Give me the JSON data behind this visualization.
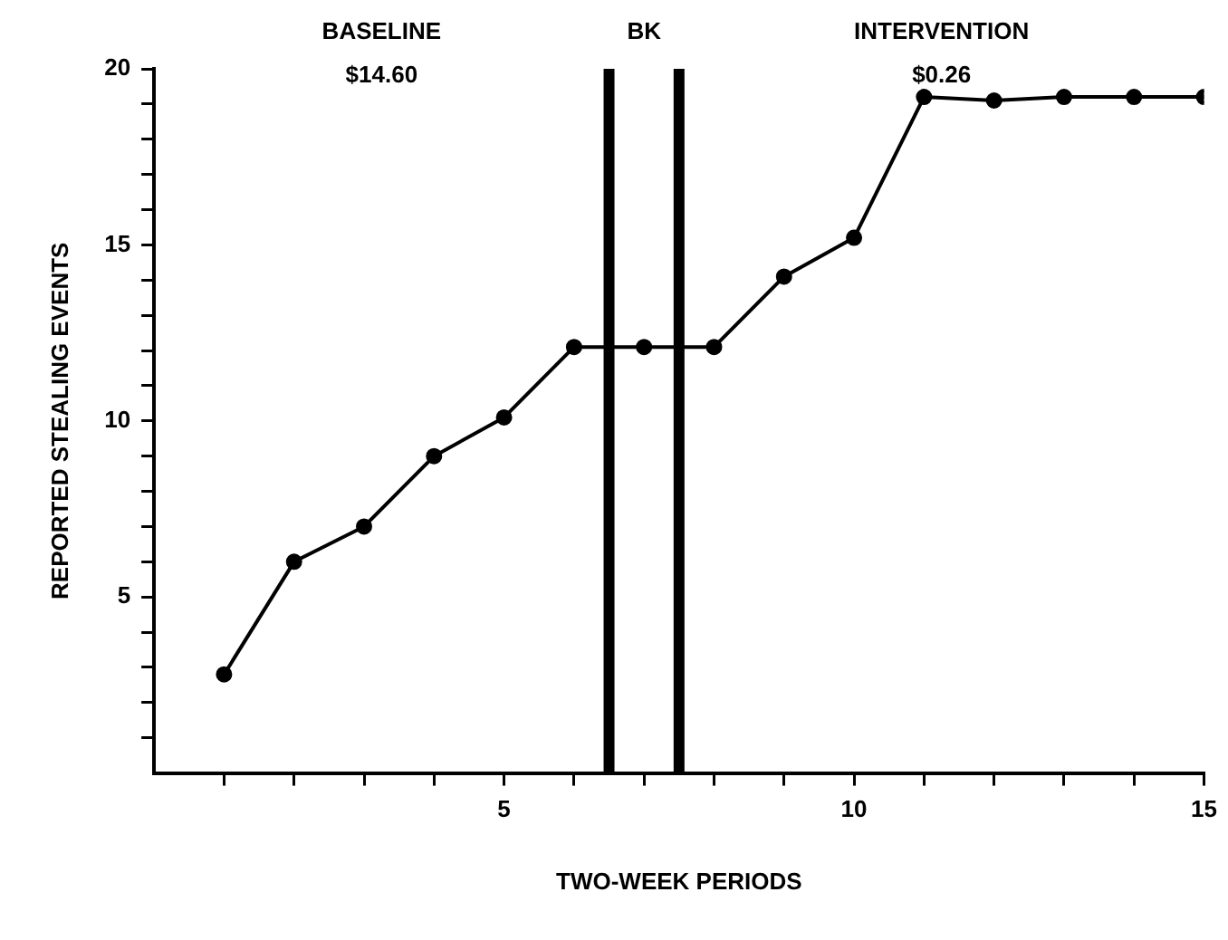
{
  "chart_data": {
    "type": "line",
    "xlabel": "TWO-WEEK PERIODS",
    "ylabel": "REPORTED STEALING EVENTS",
    "x": [
      1,
      2,
      3,
      4,
      5,
      6,
      7,
      8,
      9,
      10,
      11,
      12,
      13,
      14,
      15
    ],
    "series": [
      {
        "color": "#000000",
        "values": [
          2.8,
          6.0,
          7.0,
          9.0,
          10.1,
          12.1,
          12.1,
          12.1,
          14.1,
          15.2,
          19.2,
          19.1,
          19.2,
          19.2,
          19.2
        ]
      }
    ],
    "xlim": [
      0,
      15
    ],
    "xticks": [
      {
        "value": 1,
        "label": null
      },
      {
        "value": 2,
        "label": null
      },
      {
        "value": 3,
        "label": null
      },
      {
        "value": 4,
        "label": null
      },
      5,
      {
        "value": 6,
        "label": null
      },
      {
        "value": 7,
        "label": null
      },
      {
        "value": 8,
        "label": null
      },
      {
        "value": 9,
        "label": null
      },
      10,
      {
        "value": 11,
        "label": null
      },
      {
        "value": 12,
        "label": null
      },
      {
        "value": 13,
        "label": null
      },
      {
        "value": 14,
        "label": null
      },
      15
    ],
    "ylim": [
      0,
      20
    ],
    "yticks": [
      {
        "value": 1,
        "label": null
      },
      {
        "value": 2,
        "label": null
      },
      {
        "value": 3,
        "label": null
      },
      {
        "value": 4,
        "label": null
      },
      5,
      {
        "value": 6,
        "label": null
      },
      {
        "value": 7,
        "label": null
      },
      {
        "value": 8,
        "label": null
      },
      {
        "value": 9,
        "label": null
      },
      10,
      {
        "value": 11,
        "label": null
      },
      {
        "value": 12,
        "label": null
      },
      {
        "value": 13,
        "label": null
      },
      {
        "value": 14,
        "label": null
      },
      15,
      {
        "value": 16,
        "label": null
      },
      {
        "value": 17,
        "label": null
      },
      {
        "value": 18,
        "label": null
      },
      {
        "value": 19,
        "label": null
      },
      20
    ],
    "ref_lines": [
      {
        "axis": "x",
        "value": 6.5,
        "color": "#000000"
      },
      {
        "axis": "x",
        "value": 7.5,
        "color": "#000000"
      }
    ],
    "annotations": [
      "BASELINE\n$14.60",
      "BK",
      "INTERVENTION\n$0.26"
    ],
    "grid": false,
    "legend": false,
    "marker": "circle",
    "line_style": "solid"
  }
}
